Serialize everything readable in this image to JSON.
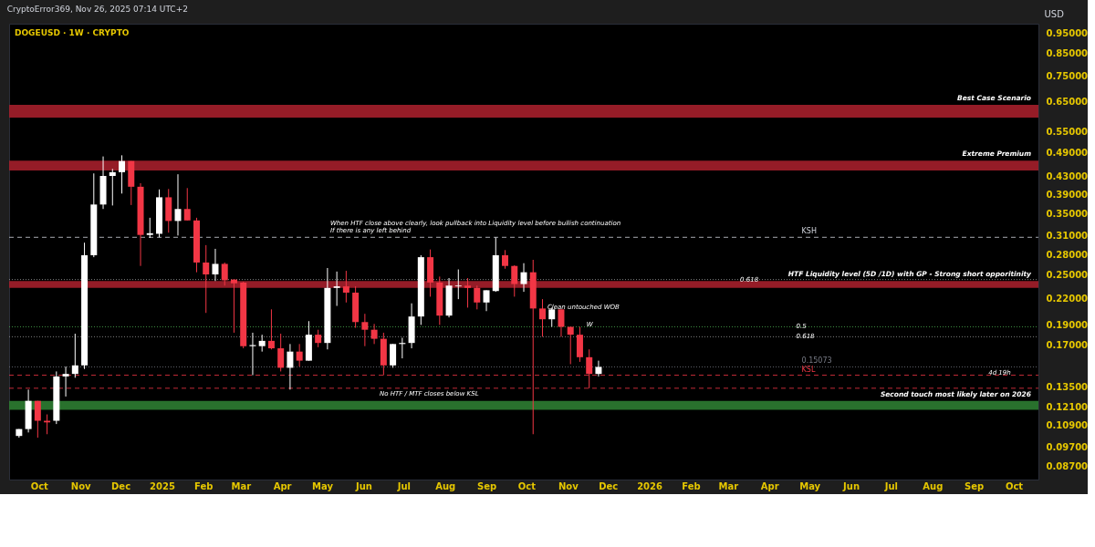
{
  "chart_data": {
    "type": "candlestick",
    "title": "DOGEUSD · 1W · CRYPTO",
    "ylabel": "USD",
    "annotations": [
      "CryptoError369, Nov 26, 2025 07:14 UTC+2",
      "When HTF close above clearly, look pullback into Liquidity level before bullish continuation",
      "If there is any left behind",
      {
        "text": "0.618",
        "x": "2026-03-10",
        "y": 0.244
      },
      {
        "text": "0.5",
        "x": "2026-04-21",
        "y": 0.188
      },
      {
        "text": "0.618",
        "x": "2026-04-21",
        "y": 0.178
      },
      "Clean untouched WOB",
      "W",
      "No HTF / MTF closes below  KSL",
      {
        "text": "4d 19h",
        "x": "2026-09-12",
        "y": 0.146
      }
    ],
    "x": [
      "2024-09-16",
      "2024-09-23",
      "2024-09-30",
      "2024-10-07",
      "2024-10-14",
      "2024-10-21",
      "2024-10-28",
      "2024-11-04",
      "2024-11-11",
      "2024-11-18",
      "2024-11-25",
      "2024-12-02",
      "2024-12-09",
      "2024-12-16",
      "2024-12-23",
      "2024-12-30",
      "2025-01-06",
      "2025-01-13",
      "2025-01-20",
      "2025-01-27",
      "2025-02-03",
      "2025-02-10",
      "2025-02-17",
      "2025-02-24",
      "2025-03-03",
      "2025-03-10",
      "2025-03-17",
      "2025-03-24",
      "2025-03-31",
      "2025-04-07",
      "2025-04-14",
      "2025-04-21",
      "2025-04-28",
      "2025-05-05",
      "2025-05-12",
      "2025-05-19",
      "2025-05-26",
      "2025-06-02",
      "2025-06-09",
      "2025-06-16",
      "2025-06-23",
      "2025-06-30",
      "2025-07-07",
      "2025-07-14",
      "2025-07-21",
      "2025-07-28",
      "2025-08-04",
      "2025-08-11",
      "2025-08-18",
      "2025-08-25",
      "2025-09-01",
      "2025-09-08",
      "2025-09-15",
      "2025-09-22",
      "2025-09-29",
      "2025-10-06",
      "2025-10-13",
      "2025-10-20",
      "2025-10-27",
      "2025-11-03",
      "2025-11-10",
      "2025-11-17",
      "2025-11-24"
    ],
    "ohlc": [
      [
        0.103,
        0.107,
        0.102,
        0.107
      ],
      [
        0.107,
        0.133,
        0.105,
        0.125
      ],
      [
        0.125,
        0.125,
        0.102,
        0.112
      ],
      [
        0.112,
        0.116,
        0.104,
        0.111
      ],
      [
        0.112,
        0.147,
        0.11,
        0.143
      ],
      [
        0.143,
        0.151,
        0.128,
        0.145
      ],
      [
        0.145,
        0.181,
        0.142,
        0.152
      ],
      [
        0.152,
        0.299,
        0.149,
        0.279
      ],
      [
        0.279,
        0.438,
        0.276,
        0.369
      ],
      [
        0.369,
        0.481,
        0.36,
        0.432
      ],
      [
        0.432,
        0.449,
        0.367,
        0.441
      ],
      [
        0.441,
        0.484,
        0.392,
        0.469
      ],
      [
        0.469,
        0.469,
        0.368,
        0.407
      ],
      [
        0.407,
        0.415,
        0.263,
        0.312
      ],
      [
        0.312,
        0.343,
        0.307,
        0.315
      ],
      [
        0.314,
        0.401,
        0.308,
        0.384
      ],
      [
        0.384,
        0.402,
        0.316,
        0.337
      ],
      [
        0.337,
        0.436,
        0.311,
        0.36
      ],
      [
        0.36,
        0.404,
        0.338,
        0.338
      ],
      [
        0.338,
        0.343,
        0.254,
        0.268
      ],
      [
        0.268,
        0.295,
        0.203,
        0.251
      ],
      [
        0.251,
        0.289,
        0.242,
        0.266
      ],
      [
        0.266,
        0.268,
        0.236,
        0.243
      ],
      [
        0.244,
        0.244,
        0.182,
        0.239
      ],
      [
        0.24,
        0.241,
        0.167,
        0.169
      ],
      [
        0.169,
        0.182,
        0.144,
        0.17
      ],
      [
        0.169,
        0.18,
        0.164,
        0.174
      ],
      [
        0.174,
        0.207,
        0.166,
        0.167
      ],
      [
        0.167,
        0.181,
        0.147,
        0.15
      ],
      [
        0.15,
        0.171,
        0.133,
        0.164
      ],
      [
        0.164,
        0.171,
        0.151,
        0.156
      ],
      [
        0.156,
        0.194,
        0.156,
        0.18
      ],
      [
        0.18,
        0.185,
        0.168,
        0.172
      ],
      [
        0.172,
        0.26,
        0.166,
        0.233
      ],
      [
        0.233,
        0.255,
        0.211,
        0.235
      ],
      [
        0.235,
        0.256,
        0.215,
        0.227
      ],
      [
        0.227,
        0.235,
        0.187,
        0.193
      ],
      [
        0.193,
        0.202,
        0.169,
        0.185
      ],
      [
        0.185,
        0.191,
        0.171,
        0.176
      ],
      [
        0.176,
        0.182,
        0.144,
        0.152
      ],
      [
        0.152,
        0.171,
        0.15,
        0.171
      ],
      [
        0.171,
        0.177,
        0.158,
        0.172
      ],
      [
        0.172,
        0.214,
        0.167,
        0.199
      ],
      [
        0.199,
        0.279,
        0.19,
        0.276
      ],
      [
        0.276,
        0.288,
        0.222,
        0.24
      ],
      [
        0.24,
        0.248,
        0.19,
        0.2
      ],
      [
        0.2,
        0.246,
        0.198,
        0.236
      ],
      [
        0.235,
        0.258,
        0.219,
        0.236
      ],
      [
        0.236,
        0.246,
        0.209,
        0.233
      ],
      [
        0.233,
        0.236,
        0.207,
        0.215
      ],
      [
        0.215,
        0.23,
        0.205,
        0.23
      ],
      [
        0.229,
        0.308,
        0.228,
        0.279
      ],
      [
        0.279,
        0.287,
        0.259,
        0.263
      ],
      [
        0.263,
        0.264,
        0.222,
        0.238
      ],
      [
        0.238,
        0.267,
        0.228,
        0.254
      ],
      [
        0.254,
        0.272,
        0.104,
        0.208
      ],
      [
        0.208,
        0.219,
        0.178,
        0.196
      ],
      [
        0.196,
        0.209,
        0.188,
        0.207
      ],
      [
        0.207,
        0.207,
        0.178,
        0.188
      ],
      [
        0.188,
        0.188,
        0.153,
        0.18
      ],
      [
        0.18,
        0.188,
        0.155,
        0.159
      ],
      [
        0.159,
        0.166,
        0.134,
        0.145
      ],
      [
        0.145,
        0.156,
        0.143,
        0.15073
      ]
    ],
    "colors": [
      "#ffffff",
      "#ffffff",
      "#f23645",
      "#f23645",
      "#ffffff",
      "#ffffff",
      "#ffffff",
      "#ffffff",
      "#ffffff",
      "#ffffff",
      "#ffffff",
      "#ffffff",
      "#f23645",
      "#f23645",
      "#ffffff",
      "#ffffff",
      "#f23645",
      "#ffffff",
      "#f23645",
      "#f23645",
      "#f23645",
      "#ffffff",
      "#f23645",
      "#f23645",
      "#f23645",
      "#ffffff",
      "#ffffff",
      "#f23645",
      "#f23645",
      "#ffffff",
      "#f23645",
      "#ffffff",
      "#f23645",
      "#ffffff",
      "#ffffff",
      "#f23645",
      "#f23645",
      "#f23645",
      "#f23645",
      "#f23645",
      "#ffffff",
      "#ffffff",
      "#ffffff",
      "#ffffff",
      "#f23645",
      "#f23645",
      "#ffffff",
      "#ffffff",
      "#f23645",
      "#f23645",
      "#ffffff",
      "#ffffff",
      "#f23645",
      "#f23645",
      "#ffffff",
      "#f23645",
      "#f23645",
      "#ffffff",
      "#f23645",
      "#f23645",
      "#f23645",
      "#f23645",
      "#ffffff"
    ],
    "log": "y",
    "xlim": [
      "2024-09-12",
      "2026-10-16"
    ],
    "xticks": [
      {
        "value": "2024-10-01",
        "label": "Oct"
      },
      {
        "value": "2024-11-01",
        "label": "Nov"
      },
      {
        "value": "2024-12-01",
        "label": "Dec"
      },
      {
        "value": "2025-01-01",
        "label": "2025"
      },
      {
        "value": "2025-02-01",
        "label": "Feb"
      },
      {
        "value": "2025-03-01",
        "label": "Mar"
      },
      {
        "value": "2025-04-01",
        "label": "Apr"
      },
      {
        "value": "2025-05-01",
        "label": "May"
      },
      {
        "value": "2025-06-01",
        "label": "Jun"
      },
      {
        "value": "2025-07-01",
        "label": "Jul"
      },
      {
        "value": "2025-08-01",
        "label": "Aug"
      },
      {
        "value": "2025-09-01",
        "label": "Sep"
      },
      {
        "value": "2025-10-01",
        "label": "Oct"
      },
      {
        "value": "2025-11-01",
        "label": "Nov"
      },
      {
        "value": "2025-12-01",
        "label": "Dec"
      },
      {
        "value": "2026-01-01",
        "label": "2026"
      },
      {
        "value": "2026-02-01",
        "label": "Feb"
      },
      {
        "value": "2026-03-01",
        "label": "Mar"
      },
      {
        "value": "2026-04-01",
        "label": "Apr"
      },
      {
        "value": "2026-05-01",
        "label": "May"
      },
      {
        "value": "2026-06-01",
        "label": "Jun"
      },
      {
        "value": "2026-07-01",
        "label": "Jul"
      },
      {
        "value": "2026-08-01",
        "label": "Aug"
      },
      {
        "value": "2026-09-01",
        "label": "Sep"
      },
      {
        "value": "2026-10-01",
        "label": "Oct"
      }
    ],
    "ylim": [
      0.081,
      1.0
    ],
    "yticks": [
      {
        "value": 0.087,
        "label": "0.08700"
      },
      {
        "value": 0.097,
        "label": "0.09700"
      },
      {
        "value": 0.109,
        "label": "0.10900"
      },
      {
        "value": 0.121,
        "label": "0.12100"
      },
      {
        "value": 0.135,
        "label": "0.13500"
      },
      {
        "value": 0.17,
        "label": "0.17000"
      },
      {
        "value": 0.19,
        "label": "0.19000"
      },
      {
        "value": 0.22,
        "label": "0.22000"
      },
      {
        "value": 0.25,
        "label": "0.25000"
      },
      {
        "value": 0.28,
        "label": "0.28000"
      },
      {
        "value": 0.31,
        "label": "0.31000"
      },
      {
        "value": 0.35,
        "label": "0.35000"
      },
      {
        "value": 0.39,
        "label": "0.39000"
      },
      {
        "value": 0.43,
        "label": "0.43000"
      },
      {
        "value": 0.49,
        "label": "0.49000"
      },
      {
        "value": 0.55,
        "label": "0.55000"
      },
      {
        "value": 0.65,
        "label": "0.65000"
      },
      {
        "value": 0.75,
        "label": "0.75000"
      },
      {
        "value": 0.85,
        "label": "0.85000"
      },
      {
        "value": 0.95,
        "label": "0.95000"
      }
    ],
    "bands": [
      {
        "axis": "y",
        "from": 0.596,
        "to": 0.639,
        "label": "Best Case Scenario",
        "color": "#a51f2b"
      },
      {
        "axis": "y",
        "from": 0.445,
        "to": 0.47,
        "label": "Extreme Premium",
        "color": "#a51f2b"
      },
      {
        "axis": "y",
        "from": 0.233,
        "to": 0.242,
        "label": "HTF Liquidity level (5D /1D) with GP - Strong short opporitinity",
        "color": "#a51f2b"
      },
      {
        "axis": "y",
        "from": 0.119,
        "to": 0.125,
        "label": "Second touch most likely later on 2026",
        "color": "#2e7d32"
      }
    ],
    "ref_lines": [
      {
        "axis": "y",
        "value": 0.308,
        "label": "KSH",
        "line_style": "dashed",
        "color": "#d1d4dc"
      },
      {
        "axis": "y",
        "value": 0.144,
        "label": "KSL",
        "line_style": "dashed",
        "color": "#f23645"
      },
      {
        "axis": "y",
        "value": 0.134,
        "line_style": "dashed",
        "color": "#f23645"
      },
      {
        "axis": "y",
        "value": 0.244,
        "line_style": "dotted",
        "color": "#9e9e9e"
      },
      {
        "axis": "y",
        "value": 0.188,
        "line_style": "dotted",
        "color": "#4caf50"
      },
      {
        "axis": "y",
        "value": 0.178,
        "line_style": "dotted",
        "color": "#9e9e9e"
      },
      {
        "axis": "y",
        "value": 0.15073,
        "label": "0.15073",
        "line_style": "dotted",
        "color": "#787b86"
      }
    ],
    "grid": false
  }
}
